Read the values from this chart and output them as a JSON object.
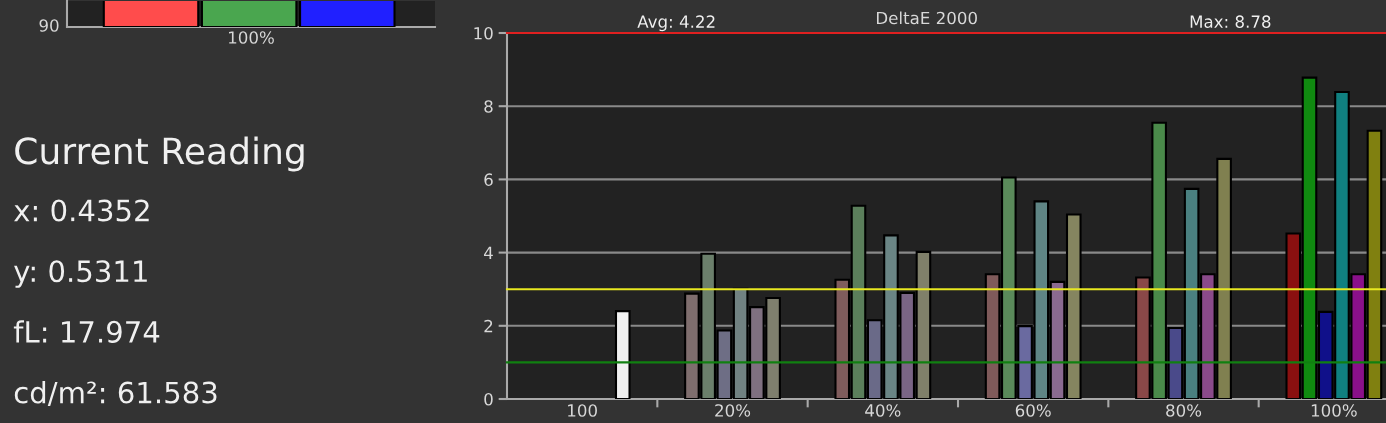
{
  "chart_data": [
    {
      "type": "other",
      "annotations": [
        "90",
        "100%"
      ],
      "colors": [
        "#ff4c4c",
        "#4aa64f",
        "#2020ff"
      ]
    },
    {
      "type": "other",
      "title": "Current Reading",
      "annotations": [
        "x: 0.4352",
        "y: 0.5311",
        "fL: 17.974",
        "cd/m²: 61.583"
      ]
    },
    {
      "type": "bar",
      "title": "DeltaE 2000",
      "annotations": [
        "Avg: 4.22",
        "Max: 8.78"
      ],
      "categories": [
        "100",
        "20%",
        "40%",
        "60%",
        "80%",
        "100%"
      ],
      "ylim": [
        0,
        10
      ],
      "yticks": [
        0,
        2,
        4,
        6,
        8,
        10
      ],
      "grid": "y",
      "ref_lines": [
        {
          "axis": "y",
          "value": 10,
          "color": "#e02020"
        },
        {
          "axis": "y",
          "value": 3,
          "color": "#e8e820"
        },
        {
          "axis": "y",
          "value": 1,
          "color": "#108010"
        }
      ],
      "series": [
        {
          "colors": [
            null,
            "#7f6e6e",
            "#7f5c5c",
            "#7f5a5a",
            "#8a4848",
            "#8a1010"
          ],
          "values": [
            null,
            2.88,
            3.26,
            3.41,
            3.32,
            4.52
          ]
        },
        {
          "colors": [
            null,
            "#6b7f6b",
            "#5b7f5b",
            "#5a8a5a",
            "#4a8a4a",
            "#108a10"
          ],
          "values": [
            null,
            3.97,
            5.28,
            6.05,
            7.55,
            8.78
          ]
        },
        {
          "colors": [
            null,
            "#6e6e85",
            "#6a6a88",
            "#6a6aa0",
            "#4a4a8a",
            "#10108a"
          ],
          "values": [
            null,
            1.87,
            2.15,
            1.99,
            1.94,
            2.38
          ]
        },
        {
          "colors": [
            null,
            "#718282",
            "#6a8585",
            "#5f8585",
            "#4a8080",
            "#108080"
          ],
          "values": [
            null,
            3.01,
            4.47,
            5.4,
            5.74,
            8.39
          ]
        },
        {
          "colors": [
            null,
            "#7f7080",
            "#7a6585",
            "#8a6a90",
            "#8a4a8a",
            "#8a108a"
          ],
          "values": [
            null,
            2.51,
            2.9,
            3.2,
            3.41,
            3.41
          ]
        },
        {
          "colors": [
            "#f0f0f0",
            "#7f7f6e",
            "#80806a",
            "#858560",
            "#808050",
            "#808010"
          ],
          "values": [
            2.4,
            2.76,
            4.02,
            5.04,
            6.56,
            7.33
          ]
        }
      ]
    }
  ]
}
